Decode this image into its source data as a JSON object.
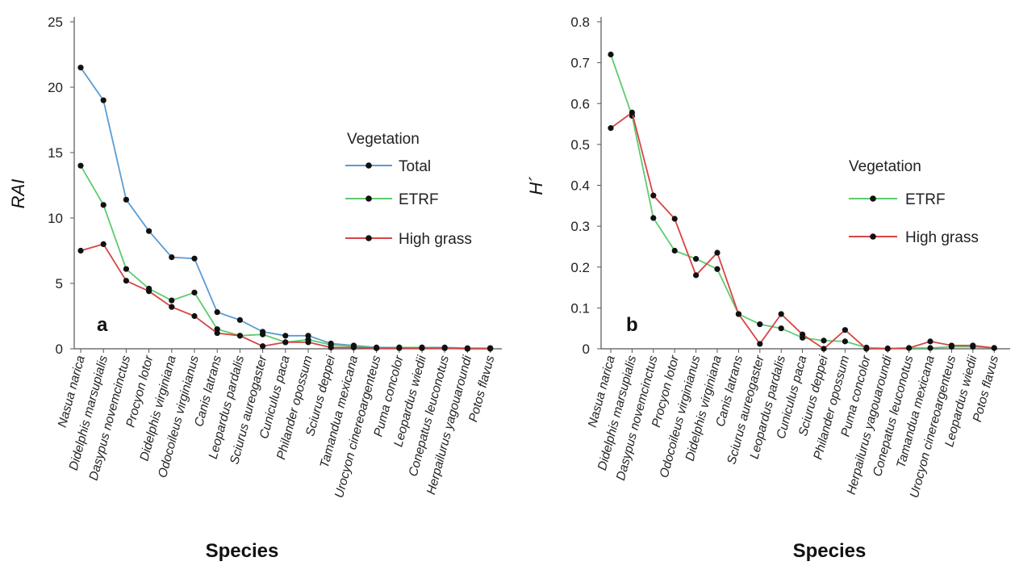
{
  "colors": {
    "total": "#5b9bd5",
    "etrf": "#5ecb6f",
    "high_grass": "#d64545",
    "marker": "#111111",
    "axis": "#555555"
  },
  "chart_data": [
    {
      "type": "line",
      "panel_label": "a",
      "title": "",
      "xlabel": "Species",
      "ylabel": "RAI",
      "ylim": [
        0,
        25
      ],
      "yticks": [
        "0",
        "5",
        "10",
        "15",
        "20",
        "25"
      ],
      "grid": false,
      "legend_placement": "right",
      "legend_title": "Vegetation",
      "categories": [
        "Nasua narica",
        "Didelphis marsupialis",
        "Dasypus novemcinctus",
        "Procyon lotor",
        "Didelphis virginiana",
        "Odocoileus virginianus",
        "Canis latrans",
        "Leopardus pardalis",
        "Sciurus aureogaster",
        "Cuniculus paca",
        "Philander opossum",
        "Sciurus deppei",
        "Tamandua mexicana",
        "Urocyon cinereoargenteus",
        "Puma concolor",
        "Leopardus wiedii",
        "Conepatus leuconotus",
        "Herpailurus yagouaroundi",
        "Potos flavus"
      ],
      "series": [
        {
          "name": "Total",
          "color": "#5b9bd5",
          "values": [
            21.5,
            19.0,
            11.4,
            9.0,
            7.0,
            6.9,
            2.8,
            2.2,
            1.3,
            1.0,
            1.0,
            0.4,
            0.25,
            0.1,
            0.1,
            0.1,
            0.1,
            0.05,
            0.05
          ]
        },
        {
          "name": "ETRF",
          "color": "#5ecb6f",
          "values": [
            14.0,
            11.0,
            6.1,
            4.6,
            3.7,
            4.3,
            1.5,
            1.0,
            1.1,
            0.5,
            0.7,
            0.3,
            0.2,
            0.05,
            0.1,
            0.1,
            0.05,
            0.0,
            0.05
          ]
        },
        {
          "name": "High grass",
          "color": "#d64545",
          "values": [
            7.5,
            8.0,
            5.2,
            4.4,
            3.2,
            2.5,
            1.2,
            1.0,
            0.2,
            0.5,
            0.5,
            0.1,
            0.1,
            0.05,
            0.05,
            0.05,
            0.05,
            0.0,
            0.0
          ]
        }
      ]
    },
    {
      "type": "line",
      "panel_label": "b",
      "title": "",
      "xlabel": "Species",
      "ylabel": "H´",
      "ylim": [
        0,
        0.8
      ],
      "yticks": [
        "0",
        "0.1",
        "0.2",
        "0.3",
        "0.4",
        "0.5",
        "0.6",
        "0.7",
        "0.8"
      ],
      "grid": false,
      "legend_placement": "right",
      "legend_title": "Vegetation",
      "categories": [
        "Nasua narica",
        "Didelphis marsupialis",
        "Dasypus novemcinctus",
        "Procyon lotor",
        "Odocoileus virginianus",
        "Didelphis virginiana",
        "Canis latrans",
        "Sciurus aureogaster",
        "Leopardus pardalis",
        "Cuniculus paca",
        "Sciurus deppei",
        "Philander opossum",
        "Puma concolor",
        "Herpailurus yagouaroundi",
        "Conepatus leuconotus",
        "Tamandua mexicana",
        "Urocyon cinereoargenteus",
        "Leopardus wiedii",
        "Potos flavus"
      ],
      "series": [
        {
          "name": "ETRF",
          "color": "#5ecb6f",
          "values": [
            0.72,
            0.57,
            0.32,
            0.24,
            0.22,
            0.195,
            0.085,
            0.06,
            0.05,
            0.027,
            0.02,
            0.018,
            0.003,
            0.001,
            0.002,
            0.002,
            0.005,
            0.005,
            0.002
          ]
        },
        {
          "name": "High grass",
          "color": "#d64545",
          "values": [
            0.54,
            0.578,
            0.375,
            0.318,
            0.18,
            0.235,
            0.085,
            0.012,
            0.085,
            0.035,
            0.0,
            0.046,
            0.0,
            0.0,
            0.002,
            0.018,
            0.008,
            0.008,
            0.002
          ]
        }
      ]
    }
  ]
}
